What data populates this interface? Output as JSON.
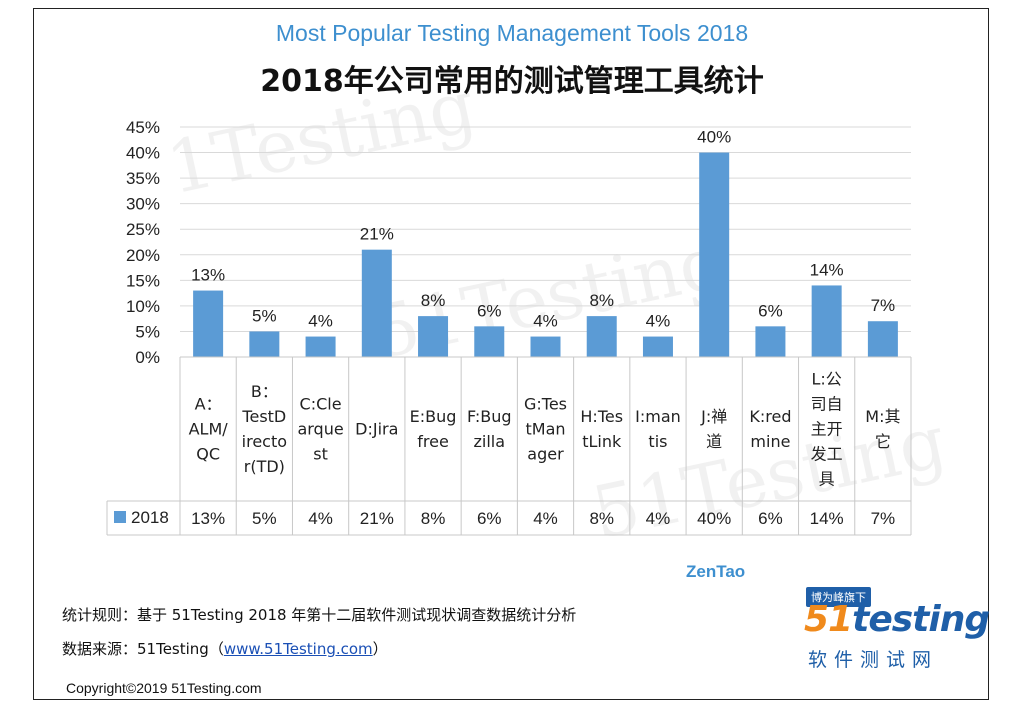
{
  "title_en": "Most Popular Testing Management Tools 2018",
  "title_cn": "2018年公司常用的测试管理工具统计",
  "annotation": "ZenTao",
  "footnote_rule": "统计规则：基于 51Testing 2018 年第十二届软件测试现状调查数据统计分析",
  "footnote_source_prefix": "数据来源：51Testing（",
  "footnote_source_link": "www.51Testing.com",
  "footnote_source_suffix": "）",
  "copyright": "Copyright©2019 51Testing.com",
  "watermark_text": "51Testing",
  "watermark_text_top": "1Testing",
  "logo": {
    "badge": "博为峰旗下",
    "main_prefix": "51",
    "main_suffix": "testing",
    "sub": "软件测试网"
  },
  "colors": {
    "bar": "#5b9bd5",
    "title_en": "#3d8fcf",
    "annotation": "#3d8fcf",
    "logo_blue": "#1f5fa8",
    "logo_orange": "#f08a1c"
  },
  "chart_data": {
    "type": "bar",
    "title": "Most Popular Testing Management Tools 2018",
    "subtitle": "2018年公司常用的测试管理工具统计",
    "categories": [
      "A：ALM/QC",
      "B：TestDirector(TD)",
      "C:Clearquest",
      "D:Jira",
      "E:Bugfree",
      "F:Bugzilla",
      "G:TestManager",
      "H:TestLink",
      "I:mantis",
      "J:禅道",
      "K:redmine",
      "L:公司自主开发工具",
      "M:其它"
    ],
    "category_lines": [
      [
        "A：",
        "ALM/",
        "QC"
      ],
      [
        "B：",
        "TestD",
        "irecto",
        "r(TD)"
      ],
      [
        "C:Cle",
        "arque",
        "st"
      ],
      [
        "D:Jira"
      ],
      [
        "E:Bug",
        "free"
      ],
      [
        "F:Bug",
        "zilla"
      ],
      [
        "G:Tes",
        "tMan",
        "ager"
      ],
      [
        "H:Tes",
        "tLink"
      ],
      [
        "I:man",
        "tis"
      ],
      [
        "J:禅",
        "道"
      ],
      [
        "K:red",
        "mine"
      ],
      [
        "L:公",
        "司自",
        "主开",
        "发工",
        "具"
      ],
      [
        "M:其",
        "它"
      ]
    ],
    "series": [
      {
        "name": "2018",
        "values": [
          13,
          5,
          4,
          21,
          8,
          6,
          4,
          8,
          4,
          40,
          6,
          14,
          7
        ]
      }
    ],
    "data_labels": [
      "13%",
      "5%",
      "4%",
      "21%",
      "8%",
      "6%",
      "4%",
      "8%",
      "4%",
      "40%",
      "6%",
      "14%",
      "7%"
    ],
    "y_ticks": [
      "0%",
      "5%",
      "10%",
      "15%",
      "20%",
      "25%",
      "30%",
      "35%",
      "40%",
      "45%"
    ],
    "ylim": [
      0,
      45
    ],
    "grid": true,
    "legend": "data-table-left",
    "data_table": true
  }
}
